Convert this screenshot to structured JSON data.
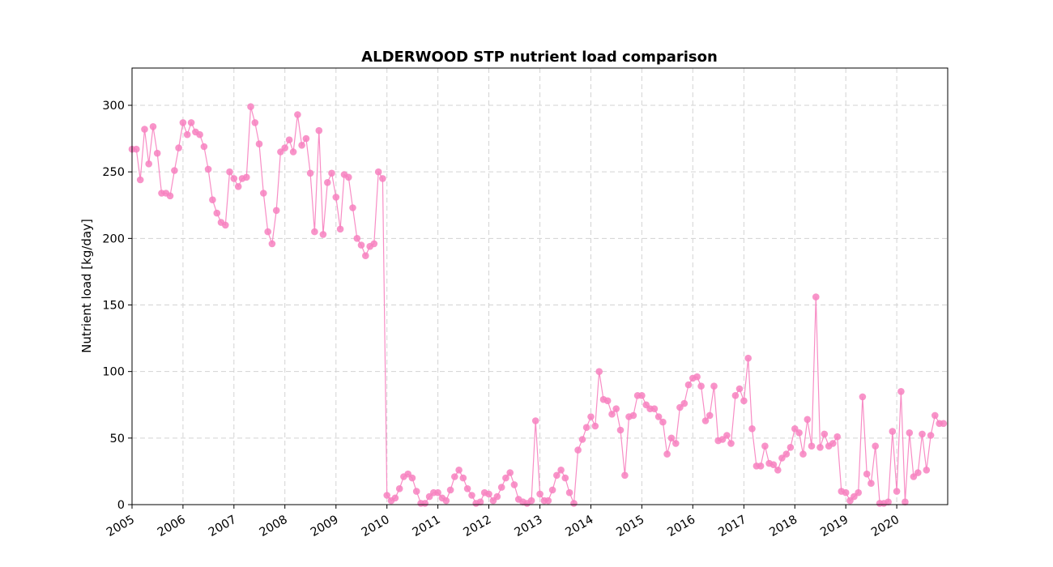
{
  "chart_data": {
    "type": "line",
    "title": "ALDERWOOD STP nutrient load comparison",
    "xlabel": "",
    "ylabel": "Nutrient load [kg/day]",
    "x_axis": "date",
    "xlim": [
      "2005-01-01",
      "2020-12-31"
    ],
    "ylim": [
      0,
      328
    ],
    "xticks": [
      "2005",
      "2006",
      "2007",
      "2008",
      "2009",
      "2010",
      "2011",
      "2012",
      "2013",
      "2014",
      "2015",
      "2016",
      "2017",
      "2018",
      "2019",
      "2020"
    ],
    "yticks": [
      0,
      50,
      100,
      150,
      200,
      250,
      300
    ],
    "grid": true,
    "color": "#f781bf",
    "series": [
      {
        "x": [
          "2005-01",
          "2005-02",
          "2005-03",
          "2005-04",
          "2005-05",
          "2005-06",
          "2005-07",
          "2005-08",
          "2005-09",
          "2005-10",
          "2005-11",
          "2005-12",
          "2006-01",
          "2006-02",
          "2006-03",
          "2006-04",
          "2006-05",
          "2006-06",
          "2006-07",
          "2006-08",
          "2006-09",
          "2006-10",
          "2006-11",
          "2006-12",
          "2007-01",
          "2007-02",
          "2007-03",
          "2007-04",
          "2007-05",
          "2007-06",
          "2007-07",
          "2007-08",
          "2007-09",
          "2007-10",
          "2007-11",
          "2007-12",
          "2008-01",
          "2008-02",
          "2008-03",
          "2008-04",
          "2008-05",
          "2008-06",
          "2008-07",
          "2008-08",
          "2008-09",
          "2008-10",
          "2008-11",
          "2008-12",
          "2009-01",
          "2009-02",
          "2009-03",
          "2009-04",
          "2009-05",
          "2009-06",
          "2009-07",
          "2009-08",
          "2009-09",
          "2009-10",
          "2009-11",
          "2009-12",
          "2010-01",
          "2010-02",
          "2010-03",
          "2010-04",
          "2010-05",
          "2010-06",
          "2010-07",
          "2010-08",
          "2010-09",
          "2010-10",
          "2010-11",
          "2010-12",
          "2011-01",
          "2011-02",
          "2011-03",
          "2011-04",
          "2011-05",
          "2011-06",
          "2011-07",
          "2011-08",
          "2011-09",
          "2011-10",
          "2011-11",
          "2011-12",
          "2012-01",
          "2012-02",
          "2012-03",
          "2012-04",
          "2012-05",
          "2012-06",
          "2012-07",
          "2012-08",
          "2012-09",
          "2012-10",
          "2012-11",
          "2012-12",
          "2013-01",
          "2013-02",
          "2013-03",
          "2013-04",
          "2013-05",
          "2013-06",
          "2013-07",
          "2013-08",
          "2013-09",
          "2013-10",
          "2013-11",
          "2013-12",
          "2014-01",
          "2014-02",
          "2014-03",
          "2014-04",
          "2014-05",
          "2014-06",
          "2014-07",
          "2014-08",
          "2014-09",
          "2014-10",
          "2014-11",
          "2014-12",
          "2015-01",
          "2015-02",
          "2015-03",
          "2015-04",
          "2015-05",
          "2015-06",
          "2015-07",
          "2015-08",
          "2015-09",
          "2015-10",
          "2015-11",
          "2015-12",
          "2016-01",
          "2016-02",
          "2016-03",
          "2016-04",
          "2016-05",
          "2016-06",
          "2016-07",
          "2016-08",
          "2016-09",
          "2016-10",
          "2016-11",
          "2016-12",
          "2017-01",
          "2017-02",
          "2017-03",
          "2017-04",
          "2017-05",
          "2017-06",
          "2017-07",
          "2017-08",
          "2017-09",
          "2017-10",
          "2017-11",
          "2017-12",
          "2018-01",
          "2018-02",
          "2018-03",
          "2018-04",
          "2018-05",
          "2018-06",
          "2018-07",
          "2018-08",
          "2018-09",
          "2018-10",
          "2018-11",
          "2018-12",
          "2019-01",
          "2019-02",
          "2019-03",
          "2019-04",
          "2019-05",
          "2019-06",
          "2019-07",
          "2019-08",
          "2019-09",
          "2019-10",
          "2019-11",
          "2019-12",
          "2020-01",
          "2020-02",
          "2020-03",
          "2020-04",
          "2020-05",
          "2020-06",
          "2020-07",
          "2020-08",
          "2020-09",
          "2020-10",
          "2020-11",
          "2020-12"
        ],
        "values": [
          267,
          267,
          244,
          282,
          256,
          284,
          264,
          234,
          234,
          232,
          251,
          268,
          287,
          278,
          287,
          280,
          278,
          269,
          252,
          229,
          219,
          212,
          210,
          250,
          245,
          239,
          245,
          246,
          299,
          287,
          271,
          234,
          205,
          196,
          221,
          265,
          268,
          274,
          265,
          293,
          270,
          275,
          249,
          205,
          281,
          203,
          242,
          249,
          231,
          207,
          248,
          246,
          223,
          200,
          195,
          187,
          194,
          196,
          250,
          245,
          7,
          3,
          5,
          12,
          21,
          23,
          20,
          10,
          1,
          1,
          6,
          9,
          9,
          5,
          3,
          11,
          21,
          26,
          20,
          12,
          7,
          1,
          2,
          9,
          8,
          3,
          6,
          13,
          20,
          24,
          15,
          4,
          2,
          1,
          3,
          63,
          8,
          3,
          3,
          11,
          22,
          26,
          20,
          9,
          1,
          41,
          49,
          58,
          66,
          59,
          100,
          79,
          78,
          68,
          72,
          56,
          22,
          66,
          67,
          82,
          82,
          75,
          72,
          72,
          66,
          62,
          38,
          50,
          46,
          73,
          76,
          90,
          95,
          96,
          89,
          63,
          67,
          89,
          48,
          49,
          52,
          46,
          82,
          87,
          78,
          110,
          57,
          29,
          29,
          44,
          31,
          30,
          26,
          35,
          38,
          43,
          57,
          54,
          38,
          64,
          44,
          156,
          43,
          53,
          44,
          46,
          51,
          10,
          9,
          3,
          6,
          9,
          81,
          23,
          16,
          44,
          1,
          1,
          2,
          55,
          10,
          85,
          2,
          54,
          21,
          24,
          53,
          26,
          52,
          67,
          61,
          61
        ]
      }
    ]
  }
}
